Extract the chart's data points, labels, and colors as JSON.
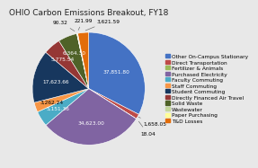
{
  "title": "OHIO Carbon Emissions Breakout, FY18",
  "labels": [
    "Other On-Campus Stationary",
    "Direct Transportation",
    "Fertilizer & Animals",
    "Purchased Electricity",
    "Faculty Commuting",
    "Staff Commuting",
    "Student Commuting",
    "Directly Financed Air Travel",
    "Solid Waste",
    "Wastewater",
    "Paper Purchasing",
    "T&D Losses"
  ],
  "values": [
    37851.8,
    1658.05,
    18.04,
    34623.0,
    5151.36,
    3262.24,
    17623.66,
    5775.54,
    6364.3,
    90.32,
    221.99,
    3621.59
  ],
  "colors": [
    "#4472C4",
    "#BE4B48",
    "#9BBB59",
    "#8064A2",
    "#4BACC6",
    "#F79646",
    "#17375E",
    "#953735",
    "#4F6228",
    "#C4D79B",
    "#FFFF99",
    "#E36C09"
  ],
  "slice_labels": [
    "37,851.80",
    "1,658.05",
    "18.04",
    "34,623.00",
    "5,151.36",
    "3,262.24",
    "17,623.66",
    "5,775.54",
    "6,364.30",
    "90.32",
    "221.99",
    "3,621.59"
  ],
  "title_fontsize": 6.5,
  "label_fontsize": 4.2,
  "legend_fontsize": 4.2,
  "bg_color": "#E8E8E8"
}
